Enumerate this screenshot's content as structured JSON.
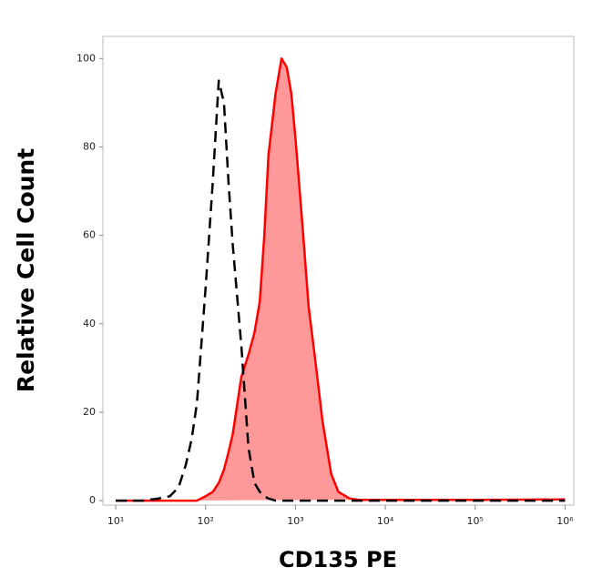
{
  "chart_data": {
    "type": "histogram-overlay",
    "x_label": "CD135 PE",
    "y_label": "Relative Cell Count",
    "x_scale": "log",
    "xlim": [
      7.2,
      1250000
    ],
    "xticks": [
      {
        "value": 10,
        "label": "10¹"
      },
      {
        "value": 100,
        "label": "10²"
      },
      {
        "value": 1000,
        "label": "10³"
      },
      {
        "value": 10000,
        "label": "10⁴"
      },
      {
        "value": 100000,
        "label": "10⁵"
      },
      {
        "value": 1000000,
        "label": "10⁶"
      }
    ],
    "ylim": [
      -1,
      105
    ],
    "yticks": [
      0,
      20,
      40,
      60,
      80,
      100
    ],
    "x": [
      10,
      20,
      30,
      40,
      50,
      60,
      70,
      80,
      100,
      120,
      140,
      160,
      180,
      200,
      250,
      300,
      350,
      400,
      450,
      500,
      600,
      700,
      800,
      900,
      1000,
      1200,
      1400,
      1700,
      2000,
      2500,
      3000,
      4000,
      5000,
      10000,
      100000,
      1000000
    ],
    "series": [
      {
        "color": "#000000",
        "style": "dashed",
        "values": [
          0,
          0,
          0.5,
          1,
          3,
          8,
          14,
          22,
          48,
          72,
          95,
          90,
          72,
          58,
          35,
          12,
          4,
          2,
          1,
          0.5,
          0,
          0,
          0,
          0,
          0,
          0,
          0,
          0,
          0,
          0,
          0,
          0,
          0,
          0,
          0,
          0
        ]
      },
      {
        "color": "#ff0000",
        "style": "solid",
        "fill": "#ff9999",
        "values": [
          0,
          0,
          0,
          0,
          0,
          0,
          0,
          0,
          1,
          2,
          4,
          7,
          11,
          15,
          28,
          33,
          38,
          45,
          60,
          78,
          92,
          100,
          98,
          92,
          82,
          62,
          44,
          30,
          18,
          6,
          2,
          0.5,
          0.2,
          0.2,
          0.2,
          0.3
        ]
      }
    ]
  }
}
